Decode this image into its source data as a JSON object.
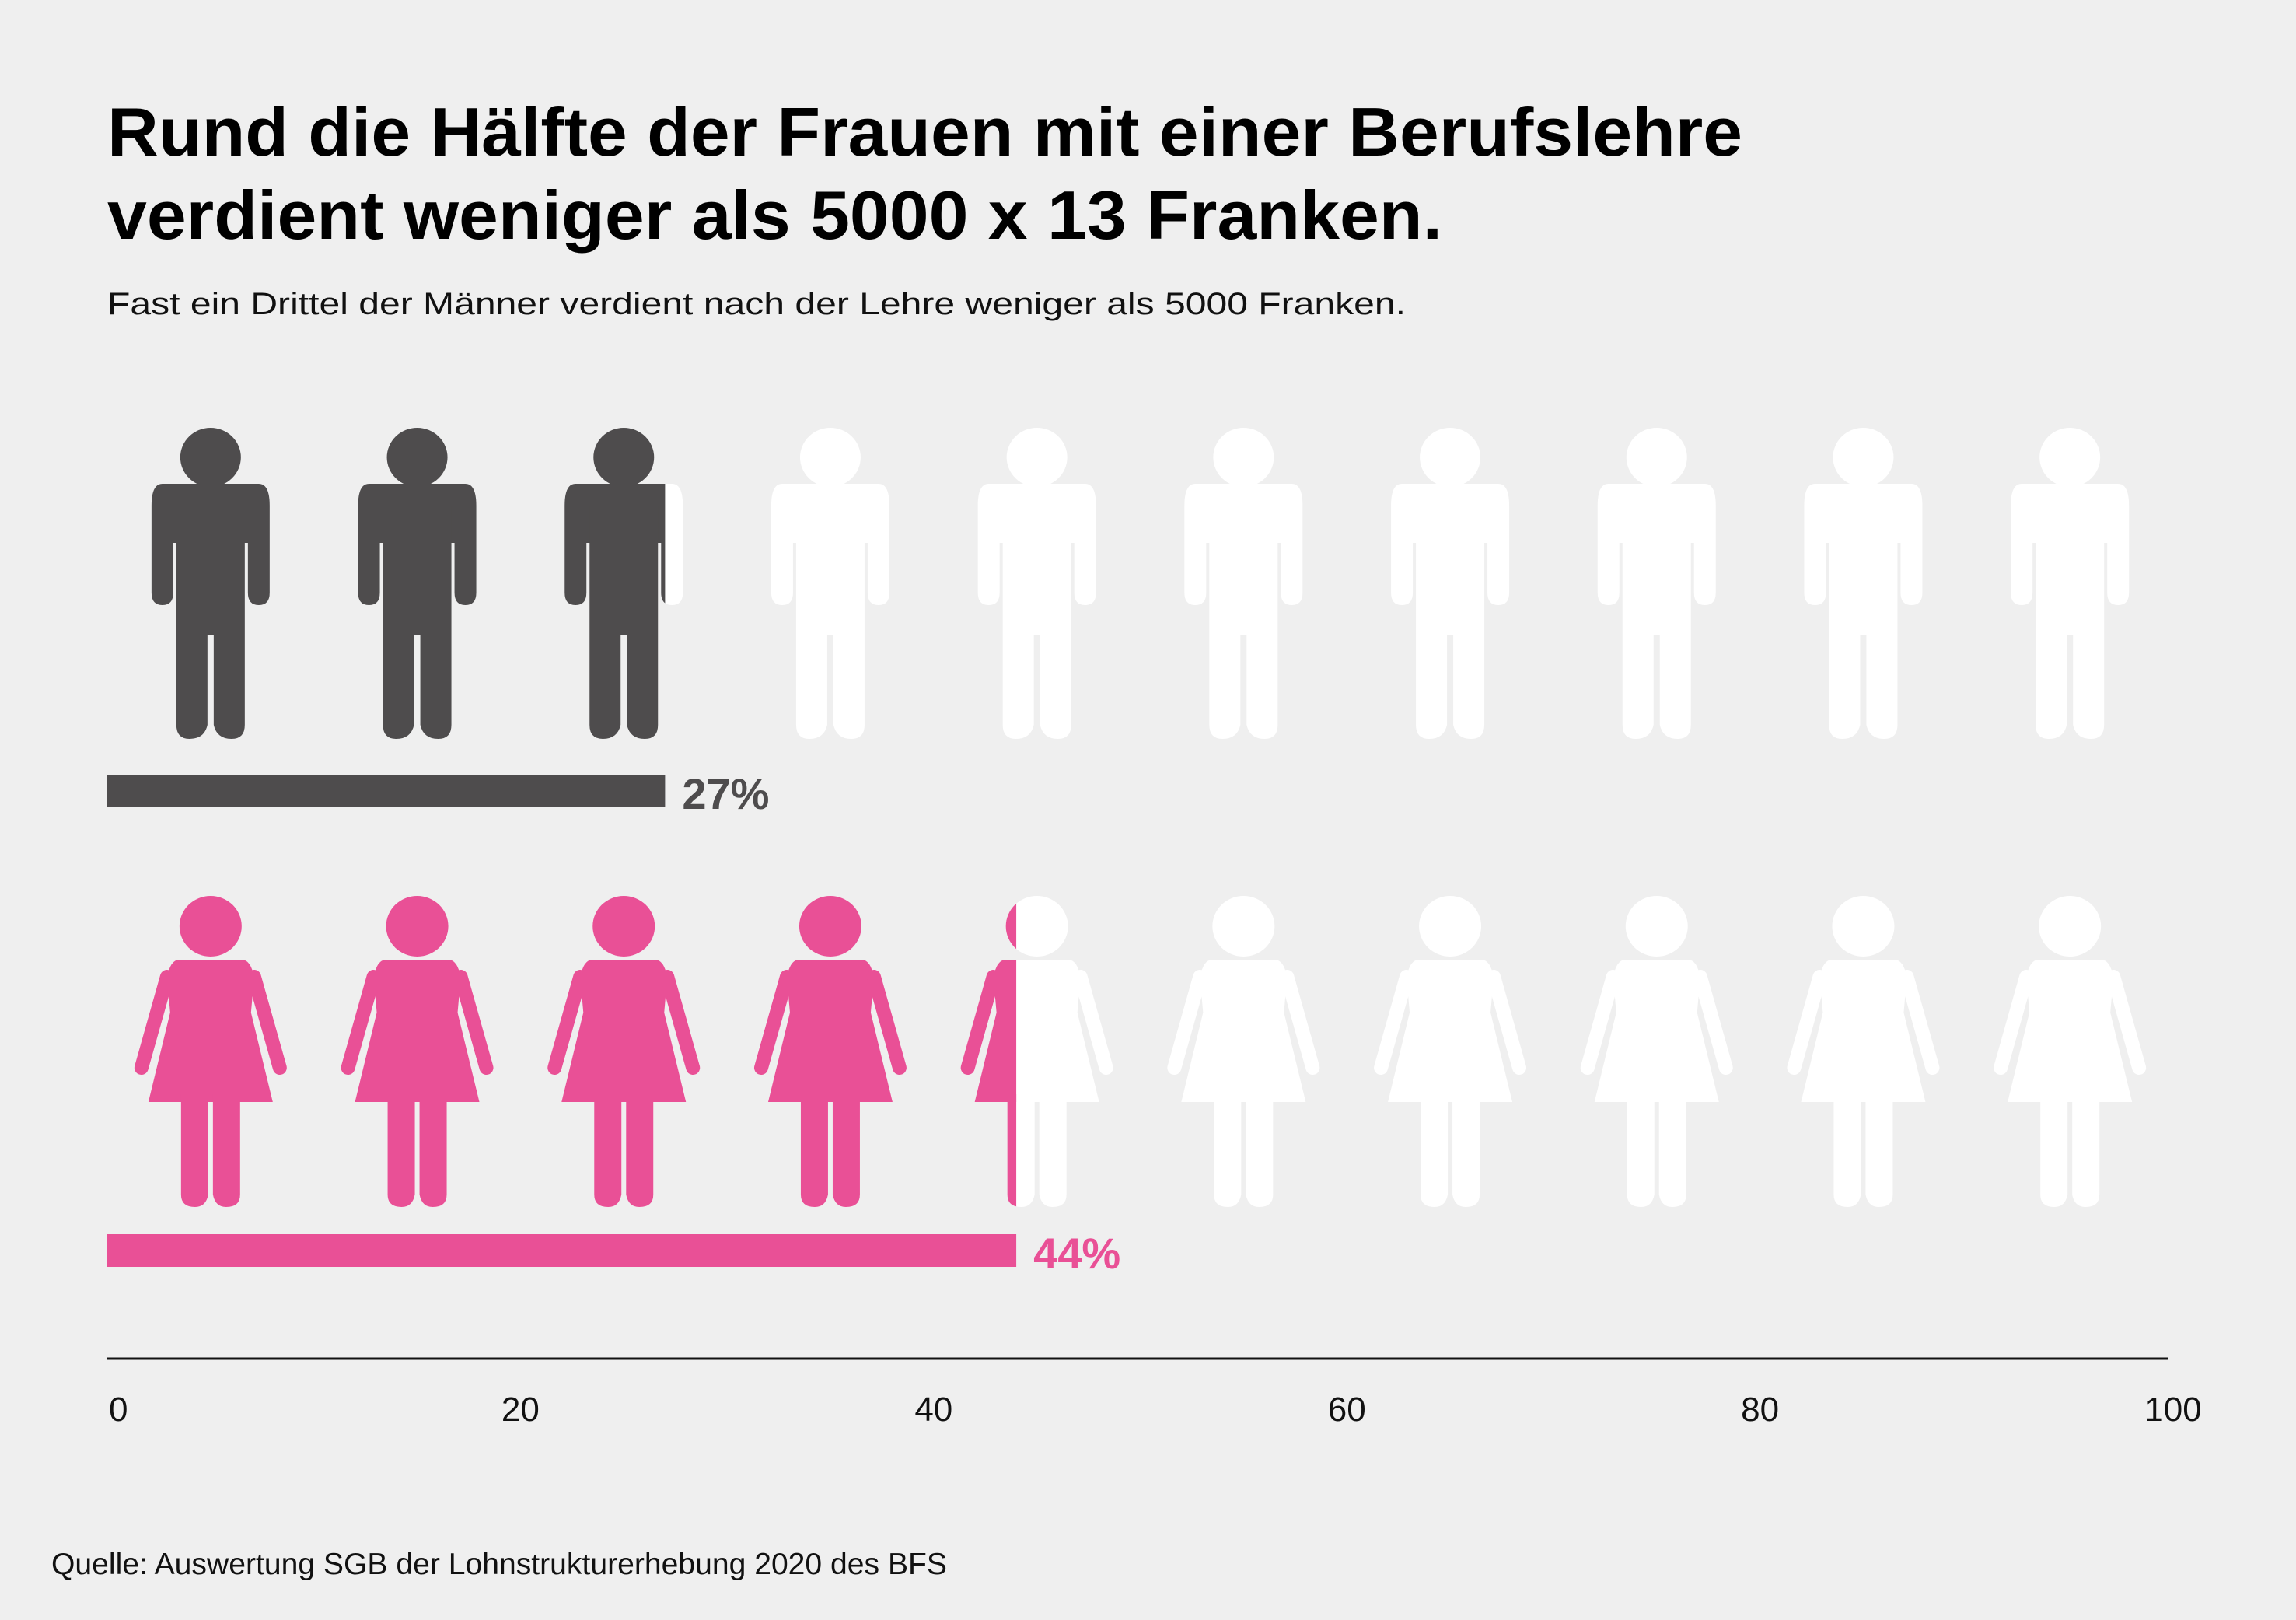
{
  "header": {
    "title_line1": "Rund die Hälfte der Frauen mit einer Berufslehre",
    "title_line2": "verdient weniger als 5000 x 13 Franken.",
    "subtitle": "Fast ein Drittel der Männer verdient nach der Lehre weniger als 5000 Franken."
  },
  "source": "Quelle: Auswertung SGB der Lohnstrukturerhebung 2020 des BFS",
  "colors": {
    "background": "#efefef",
    "men": "#4e4c4d",
    "women": "#e95096",
    "empty": "#ffffff"
  },
  "chart_data": {
    "type": "bar",
    "title": "Rund die Hälfte der Frauen mit einer Berufslehre verdient weniger als 5000 x 13 Franken.",
    "subtitle": "Fast ein Drittel der Männer verdient nach der Lehre weniger als 5000 Franken.",
    "orientation": "horizontal",
    "categories": [
      "Männer",
      "Frauen"
    ],
    "values": [
      27,
      44
    ],
    "data_labels": [
      "27%",
      "44%"
    ],
    "icons": [
      "man-icon",
      "woman-icon"
    ],
    "icons_per_row": 10,
    "xlim": [
      0,
      100
    ],
    "xticks": [
      0,
      20,
      40,
      60,
      80,
      100
    ],
    "xtick_labels": [
      "0",
      "20",
      "40",
      "60",
      "80",
      "100"
    ],
    "grid": false,
    "legend": "none"
  }
}
